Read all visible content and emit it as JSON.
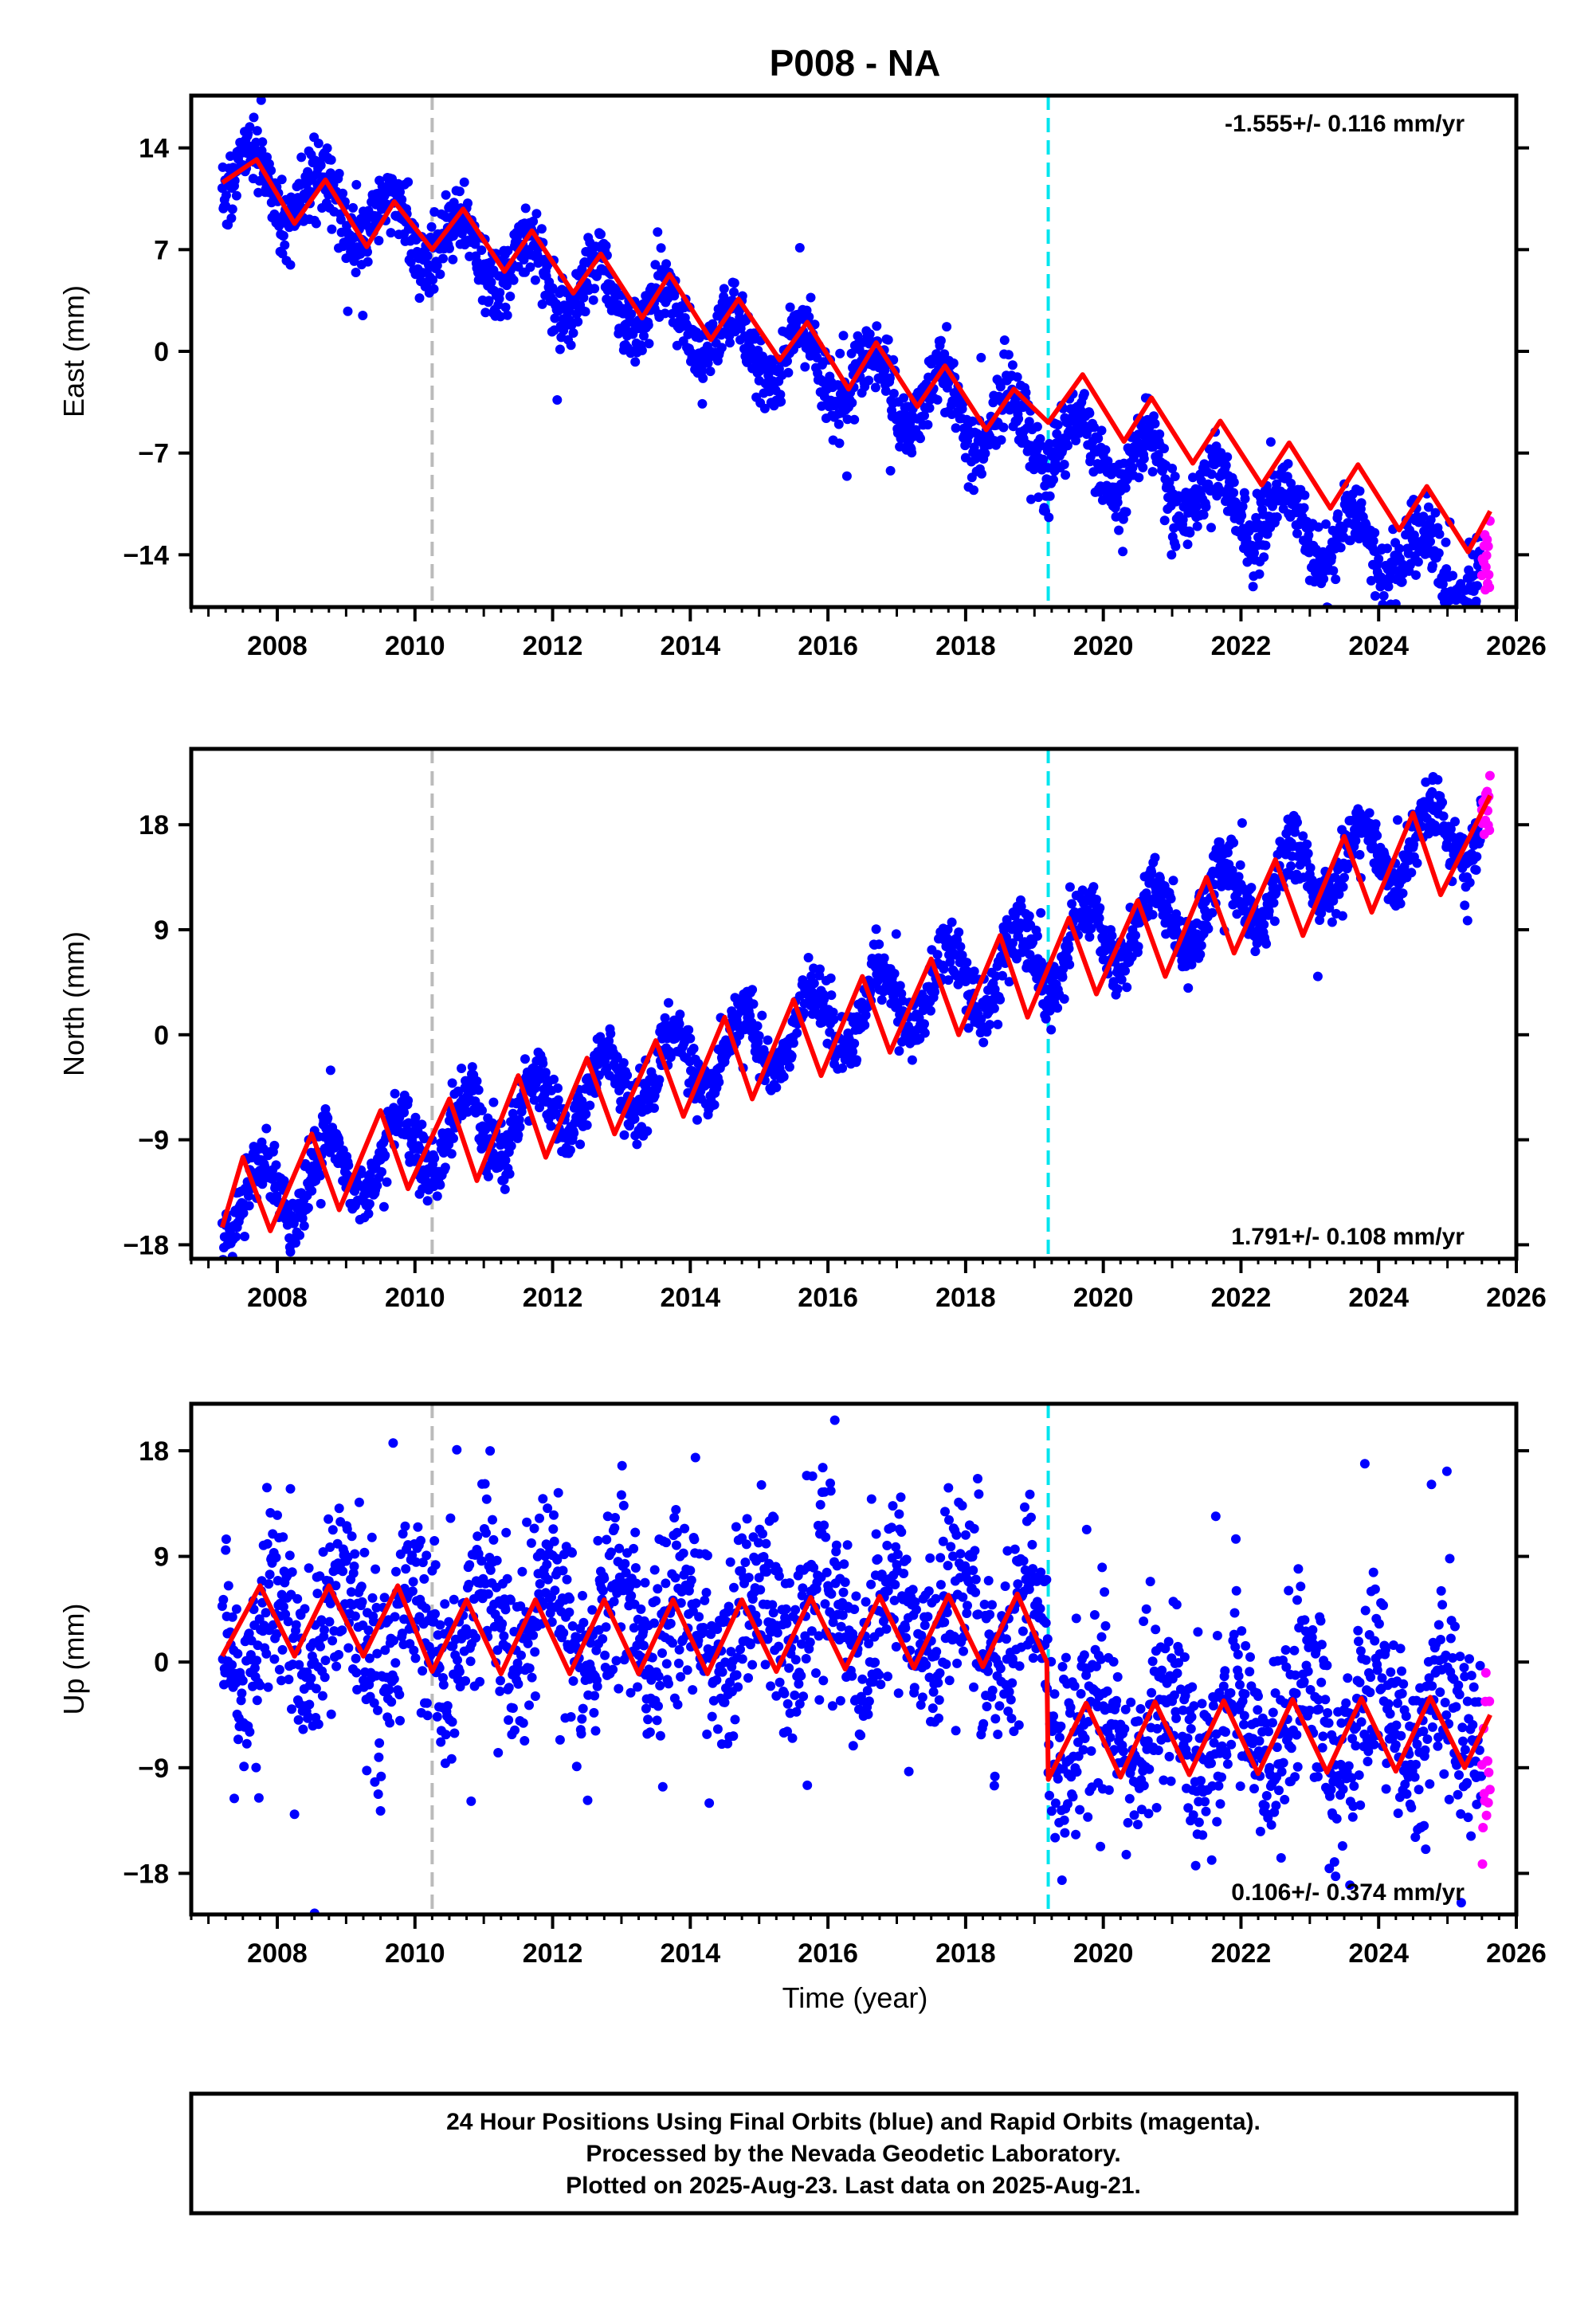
{
  "title": "P008 - NA",
  "xlabel": "Time (year)",
  "footer": {
    "line1": "24 Hour Positions Using Final Orbits (blue) and Rapid Orbits (magenta).",
    "line2": "Processed by the Nevada Geodetic Laboratory.",
    "line3": "Plotted on 2025-Aug-23. Last data on 2025-Aug-21."
  },
  "colors": {
    "final": "#0000ff",
    "rapid": "#ff00ff",
    "model": "#ff0000",
    "event_gray": "#bbbbbb",
    "event_cyan": "#00e5ee"
  },
  "chart_data": [
    {
      "type": "scatter",
      "ylabel": "East (mm)",
      "rate_text": "-1.555+/- 0.116 mm/yr",
      "rate_position": "top-right",
      "xlim": [
        2006.75,
        2026.0
      ],
      "ylim": [
        -17.6,
        17.6
      ],
      "x_ticks": [
        2008,
        2010,
        2012,
        2014,
        2016,
        2018,
        2020,
        2022,
        2024,
        2026
      ],
      "y_ticks": [
        -14,
        -7,
        0,
        7,
        14
      ],
      "x_start": 2007.2,
      "x_end": 2025.62,
      "rapid_start": 2025.5,
      "events": [
        {
          "x": 2010.25,
          "style": "gray-dashed"
        },
        {
          "x": 2019.2,
          "style": "cyan-dashed"
        }
      ],
      "model": {
        "intercept": 12.5,
        "rate": -1.555,
        "ref_year": 2007.2,
        "amplitude": 2.2,
        "phase": 0.6,
        "noise": 1.2,
        "offsets": []
      },
      "seasonal_model_points": [
        {
          "x": 2007.2,
          "y": 11.6
        },
        {
          "x": 2007.7,
          "y": 13.2
        },
        {
          "x": 2008.25,
          "y": 8.8
        },
        {
          "x": 2008.7,
          "y": 11.8
        },
        {
          "x": 2009.3,
          "y": 7.2
        },
        {
          "x": 2009.7,
          "y": 10.3
        },
        {
          "x": 2010.25,
          "y": 7.0
        },
        {
          "x": 2010.7,
          "y": 9.8
        },
        {
          "x": 2011.3,
          "y": 5.5
        },
        {
          "x": 2011.7,
          "y": 8.3
        },
        {
          "x": 2012.3,
          "y": 4.0
        },
        {
          "x": 2012.7,
          "y": 6.7
        },
        {
          "x": 2013.3,
          "y": 2.3
        },
        {
          "x": 2013.7,
          "y": 5.3
        },
        {
          "x": 2014.3,
          "y": 0.8
        },
        {
          "x": 2014.7,
          "y": 3.6
        },
        {
          "x": 2015.3,
          "y": -0.6
        },
        {
          "x": 2015.7,
          "y": 2.0
        },
        {
          "x": 2016.3,
          "y": -2.6
        },
        {
          "x": 2016.7,
          "y": 0.6
        },
        {
          "x": 2017.3,
          "y": -3.8
        },
        {
          "x": 2017.7,
          "y": -1.0
        },
        {
          "x": 2018.3,
          "y": -5.4
        },
        {
          "x": 2018.7,
          "y": -2.6
        },
        {
          "x": 2019.2,
          "y": -4.9
        },
        {
          "x": 2019.7,
          "y": -1.6
        },
        {
          "x": 2020.3,
          "y": -6.2
        },
        {
          "x": 2020.7,
          "y": -3.2
        },
        {
          "x": 2021.3,
          "y": -7.7
        },
        {
          "x": 2021.7,
          "y": -4.8
        },
        {
          "x": 2022.3,
          "y": -9.2
        },
        {
          "x": 2022.7,
          "y": -6.3
        },
        {
          "x": 2023.3,
          "y": -10.8
        },
        {
          "x": 2023.7,
          "y": -7.8
        },
        {
          "x": 2024.3,
          "y": -12.3
        },
        {
          "x": 2024.7,
          "y": -9.3
        },
        {
          "x": 2025.3,
          "y": -13.8
        },
        {
          "x": 2025.62,
          "y": -11.0
        }
      ]
    },
    {
      "type": "scatter",
      "ylabel": "North (mm)",
      "rate_text": "1.791+/- 0.108 mm/yr",
      "rate_position": "bottom-right",
      "xlim": [
        2006.75,
        2026.0
      ],
      "ylim": [
        -19.2,
        24.5
      ],
      "x_ticks": [
        2008,
        2010,
        2012,
        2014,
        2016,
        2018,
        2020,
        2022,
        2024,
        2026
      ],
      "y_ticks": [
        -18,
        -9,
        0,
        9,
        18
      ],
      "x_start": 2007.2,
      "x_end": 2025.62,
      "rapid_start": 2025.5,
      "events": [
        {
          "x": 2010.25,
          "style": "gray-dashed"
        },
        {
          "x": 2019.2,
          "style": "cyan-dashed"
        }
      ],
      "model": {
        "intercept": -14.6,
        "rate": 1.791,
        "ref_year": 2007.2,
        "amplitude": 3.0,
        "phase": 0.5,
        "noise": 1.3,
        "offsets": []
      },
      "seasonal_model_points": [
        {
          "x": 2007.2,
          "y": -16.5
        },
        {
          "x": 2007.5,
          "y": -10.5
        },
        {
          "x": 2007.9,
          "y": -16.8
        },
        {
          "x": 2008.5,
          "y": -8.5
        },
        {
          "x": 2008.9,
          "y": -15.0
        },
        {
          "x": 2009.5,
          "y": -6.5
        },
        {
          "x": 2009.9,
          "y": -13.2
        },
        {
          "x": 2010.5,
          "y": -5.5
        },
        {
          "x": 2010.9,
          "y": -12.5
        },
        {
          "x": 2011.5,
          "y": -3.5
        },
        {
          "x": 2011.9,
          "y": -10.5
        },
        {
          "x": 2012.5,
          "y": -2.0
        },
        {
          "x": 2012.9,
          "y": -8.5
        },
        {
          "x": 2013.5,
          "y": -0.5
        },
        {
          "x": 2013.9,
          "y": -7.0
        },
        {
          "x": 2014.5,
          "y": 1.5
        },
        {
          "x": 2014.9,
          "y": -5.5
        },
        {
          "x": 2015.5,
          "y": 3.0
        },
        {
          "x": 2015.9,
          "y": -3.5
        },
        {
          "x": 2016.5,
          "y": 5.0
        },
        {
          "x": 2016.9,
          "y": -1.5
        },
        {
          "x": 2017.5,
          "y": 6.5
        },
        {
          "x": 2017.9,
          "y": 0.0
        },
        {
          "x": 2018.5,
          "y": 8.5
        },
        {
          "x": 2018.9,
          "y": 1.5
        },
        {
          "x": 2019.5,
          "y": 10.0
        },
        {
          "x": 2019.9,
          "y": 3.5
        },
        {
          "x": 2020.5,
          "y": 11.5
        },
        {
          "x": 2020.9,
          "y": 5.0
        },
        {
          "x": 2021.5,
          "y": 13.5
        },
        {
          "x": 2021.9,
          "y": 7.0
        },
        {
          "x": 2022.5,
          "y": 15.0
        },
        {
          "x": 2022.9,
          "y": 8.5
        },
        {
          "x": 2023.5,
          "y": 17.0
        },
        {
          "x": 2023.9,
          "y": 10.5
        },
        {
          "x": 2024.5,
          "y": 19.0
        },
        {
          "x": 2024.9,
          "y": 12.0
        },
        {
          "x": 2025.62,
          "y": 20.5
        }
      ]
    },
    {
      "type": "scatter",
      "ylabel": "Up (mm)",
      "rate_text": "0.106+/- 0.374 mm/yr",
      "rate_position": "bottom-right",
      "xlim": [
        2006.75,
        2026.0
      ],
      "ylim": [
        -21.5,
        22.0
      ],
      "x_ticks": [
        2008,
        2010,
        2012,
        2014,
        2016,
        2018,
        2020,
        2022,
        2024,
        2026
      ],
      "y_ticks": [
        -18,
        -9,
        0,
        9,
        18
      ],
      "x_start": 2007.2,
      "x_end": 2025.62,
      "rapid_start": 2025.5,
      "events": [
        {
          "x": 2010.25,
          "style": "gray-dashed"
        },
        {
          "x": 2019.2,
          "style": "cyan-dashed"
        }
      ],
      "model": {
        "intercept": 2.5,
        "rate": 0.106,
        "ref_year": 2007.2,
        "amplitude": 3.8,
        "phase": 0.3,
        "noise": 4.0,
        "offsets": [
          {
            "x": 2019.2,
            "dy": -9.5
          }
        ]
      },
      "seasonal_model_points": [
        {
          "x": 2007.2,
          "y": 0.5
        },
        {
          "x": 2007.75,
          "y": 6.5
        },
        {
          "x": 2008.25,
          "y": 0.5
        },
        {
          "x": 2008.75,
          "y": 6.5
        },
        {
          "x": 2009.25,
          "y": 0.5
        },
        {
          "x": 2009.75,
          "y": 6.5
        },
        {
          "x": 2010.25,
          "y": -0.8
        },
        {
          "x": 2010.75,
          "y": 5.3
        },
        {
          "x": 2011.25,
          "y": -1.0
        },
        {
          "x": 2011.75,
          "y": 5.3
        },
        {
          "x": 2012.25,
          "y": -1.0
        },
        {
          "x": 2012.75,
          "y": 5.3
        },
        {
          "x": 2013.25,
          "y": -1.0
        },
        {
          "x": 2013.75,
          "y": 5.3
        },
        {
          "x": 2014.25,
          "y": -1.0
        },
        {
          "x": 2014.75,
          "y": 5.3
        },
        {
          "x": 2015.25,
          "y": -0.8
        },
        {
          "x": 2015.75,
          "y": 5.5
        },
        {
          "x": 2016.25,
          "y": -0.6
        },
        {
          "x": 2016.75,
          "y": 5.6
        },
        {
          "x": 2017.25,
          "y": -0.5
        },
        {
          "x": 2017.75,
          "y": 5.7
        },
        {
          "x": 2018.25,
          "y": -0.4
        },
        {
          "x": 2018.75,
          "y": 5.8
        },
        {
          "x": 2019.18,
          "y": 0.0
        },
        {
          "x": 2019.2,
          "y": -10.0
        },
        {
          "x": 2019.75,
          "y": -3.5
        },
        {
          "x": 2020.25,
          "y": -9.8
        },
        {
          "x": 2020.75,
          "y": -3.4
        },
        {
          "x": 2021.25,
          "y": -9.6
        },
        {
          "x": 2021.75,
          "y": -3.3
        },
        {
          "x": 2022.25,
          "y": -9.5
        },
        {
          "x": 2022.75,
          "y": -3.2
        },
        {
          "x": 2023.25,
          "y": -9.4
        },
        {
          "x": 2023.75,
          "y": -3.1
        },
        {
          "x": 2024.25,
          "y": -9.3
        },
        {
          "x": 2024.75,
          "y": -3.0
        },
        {
          "x": 2025.25,
          "y": -9.0
        },
        {
          "x": 2025.62,
          "y": -4.5
        }
      ]
    }
  ]
}
